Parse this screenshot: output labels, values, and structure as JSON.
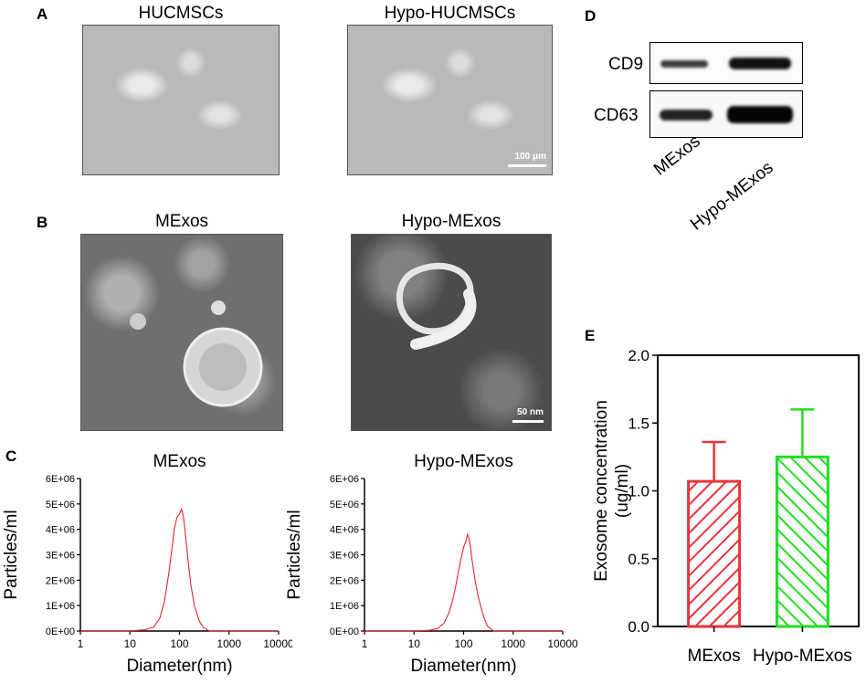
{
  "panels": {
    "A": {
      "label": "A",
      "left_title": "HUCMSCs",
      "right_title": "Hypo-HUCMSCs",
      "scale": "100 μm"
    },
    "B": {
      "label": "B",
      "left_title": "MExos",
      "right_title": "Hypo-MExos",
      "scale": "50 nm"
    },
    "C": {
      "label": "C",
      "left_title": "MExos",
      "right_title": "Hypo-MExos"
    },
    "D": {
      "label": "D",
      "rows": [
        "CD9",
        "CD63"
      ],
      "lanes": [
        "MExos",
        "Hypo-MExos"
      ]
    },
    "E": {
      "label": "E"
    }
  },
  "chart_data": [
    {
      "id": "C-left",
      "type": "line",
      "title": "MExos",
      "xlabel": "Diameter(nm)",
      "ylabel": "Particles/ml",
      "x_scale": "log",
      "xlim": [
        1,
        10000
      ],
      "ylim": [
        0,
        6000000
      ],
      "x_ticks": [
        "1",
        "10",
        "100",
        "1000",
        "10000"
      ],
      "y_ticks": [
        "0E+00",
        "1E+06",
        "2E+06",
        "3E+06",
        "4E+06",
        "5E+06",
        "6E+06"
      ],
      "color": "#e8262a",
      "x": [
        1,
        10,
        20,
        30,
        40,
        50,
        60,
        70,
        80,
        90,
        100,
        110,
        120,
        130,
        140,
        150,
        170,
        200,
        250,
        300,
        400,
        1000,
        10000
      ],
      "y": [
        0,
        0,
        50000,
        150000,
        500000,
        1200000,
        2200000,
        3200000,
        4100000,
        4500000,
        4600000,
        4800000,
        4500000,
        3900000,
        3300000,
        2700000,
        1800000,
        1000000,
        400000,
        150000,
        0,
        0,
        0
      ]
    },
    {
      "id": "C-right",
      "type": "line",
      "title": "Hypo-MExos",
      "xlabel": "Diameter(nm)",
      "ylabel": "Particles/ml",
      "x_scale": "log",
      "xlim": [
        1,
        10000
      ],
      "ylim": [
        0,
        6000000
      ],
      "x_ticks": [
        "1",
        "10",
        "100",
        "1000",
        "10000"
      ],
      "y_ticks": [
        "0E+00",
        "1E+06",
        "2E+06",
        "3E+06",
        "4E+06",
        "5E+06",
        "6E+06"
      ],
      "color": "#e8262a",
      "x": [
        1,
        10,
        20,
        30,
        40,
        50,
        60,
        70,
        80,
        90,
        100,
        110,
        120,
        130,
        140,
        150,
        170,
        200,
        250,
        300,
        400,
        1000,
        10000
      ],
      "y": [
        0,
        0,
        30000,
        100000,
        300000,
        700000,
        1200000,
        1800000,
        2400000,
        2900000,
        3300000,
        3500000,
        3800000,
        3600000,
        3200000,
        2700000,
        2000000,
        1300000,
        600000,
        200000,
        0,
        0,
        0
      ]
    },
    {
      "id": "E",
      "type": "bar",
      "ylabel": "Exosome concentration (ug/ml)",
      "ylim": [
        0,
        2.0
      ],
      "y_ticks": [
        "0.0",
        "0.5",
        "1.0",
        "1.5",
        "2.0"
      ],
      "categories": [
        "MExos",
        "Hypo-MExos"
      ],
      "values": [
        1.07,
        1.25
      ],
      "errors": [
        0.29,
        0.35
      ],
      "colors": [
        "#e8343a",
        "#22dd22"
      ]
    }
  ]
}
